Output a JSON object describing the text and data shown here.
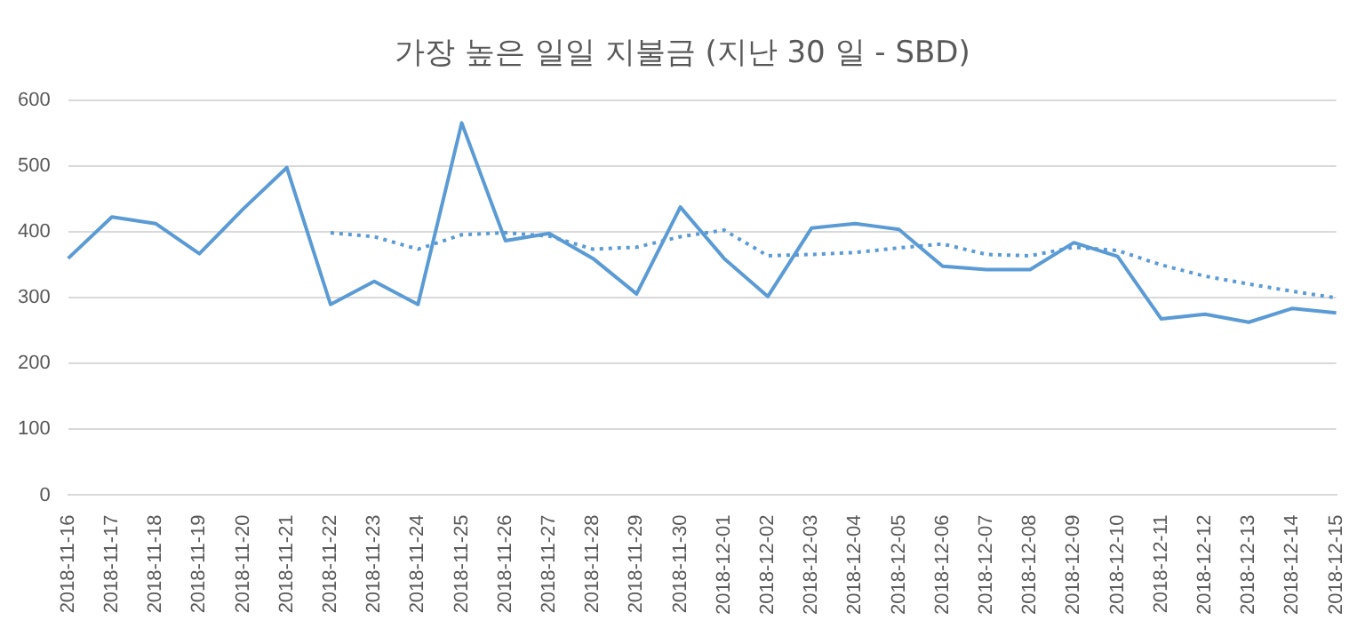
{
  "chart_data": {
    "type": "line",
    "title": "가장 높은 일일 지불금 (지난 30 일 - SBD)",
    "categories": [
      "2018-11-16",
      "2018-11-17",
      "2018-11-18",
      "2018-11-19",
      "2018-11-20",
      "2018-11-21",
      "2018-11-22",
      "2018-11-23",
      "2018-11-24",
      "2018-11-25",
      "2018-11-26",
      "2018-11-27",
      "2018-11-28",
      "2018-11-29",
      "2018-11-30",
      "2018-12-01",
      "2018-12-02",
      "2018-12-03",
      "2018-12-04",
      "2018-12-05",
      "2018-12-06",
      "2018-12-07",
      "2018-12-08",
      "2018-12-09",
      "2018-12-10",
      "2018-12-11",
      "2018-12-12",
      "2018-12-13",
      "2018-12-14",
      "2018-12-15"
    ],
    "series": [
      {
        "color": "#5b9bd5",
        "line_style": "solid",
        "values": [
          360,
          423,
          413,
          367,
          435,
          498,
          290,
          325,
          290,
          566,
          387,
          398,
          360,
          306,
          438,
          360,
          302,
          406,
          413,
          404,
          348,
          343,
          343,
          384,
          363,
          268,
          275,
          263,
          284,
          277
        ]
      },
      {
        "color": "#5b9bd5",
        "line_style": "dotted",
        "values": [
          null,
          null,
          null,
          null,
          null,
          null,
          399,
          393,
          374,
          396,
          399,
          394,
          374,
          377,
          393,
          403,
          364,
          366,
          369,
          376,
          382,
          366,
          364,
          377,
          372,
          350,
          333,
          321,
          310,
          300
        ]
      }
    ],
    "ylim": [
      0,
      600
    ],
    "yticks": [
      0,
      100,
      200,
      300,
      400,
      500,
      600
    ],
    "grid": "y",
    "legend": false,
    "marker": "none"
  }
}
